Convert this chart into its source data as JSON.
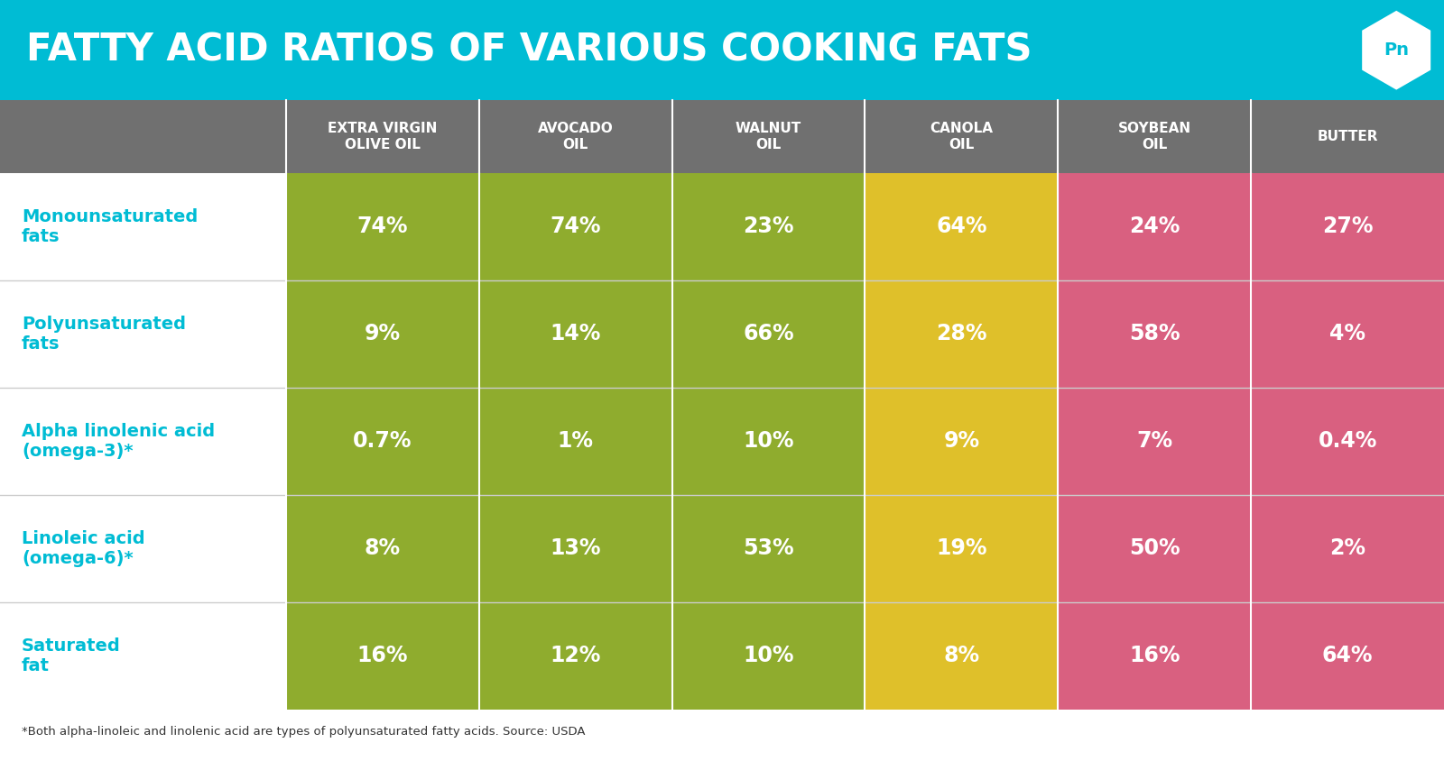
{
  "title": "FATTY ACID RATIOS OF VARIOUS COOKING FATS",
  "title_bg": "#00bcd4",
  "title_color": "#ffffff",
  "header_bg": "#707070",
  "header_color": "#ffffff",
  "row_label_color": "#00bcd4",
  "row_bg": "#ffffff",
  "footer_text": "*Both alpha-linoleic and linolenic acid are types of polyunsaturated fatty acids. Source: USDA",
  "columns": [
    "EXTRA VIRGIN\nOLIVE OIL",
    "AVOCADO\nOIL",
    "WALNUT\nOIL",
    "CANOLA\nOIL",
    "SOYBEAN\nOIL",
    "BUTTER"
  ],
  "rows": [
    "Monounsaturated\nfats",
    "Polyunsaturated\nfats",
    "Alpha linolenic acid\n(omega-3)*",
    "Linoleic acid\n(omega-6)*",
    "Saturated\nfat"
  ],
  "col_colors": [
    "#8fac2e",
    "#8fac2e",
    "#8fac2e",
    "#dfc02a",
    "#d96080",
    "#d96080"
  ],
  "data": [
    [
      "74%",
      "74%",
      "23%",
      "64%",
      "24%",
      "27%"
    ],
    [
      "9%",
      "14%",
      "66%",
      "28%",
      "58%",
      "4%"
    ],
    [
      "0.7%",
      "1%",
      "10%",
      "9%",
      "7%",
      "0.4%"
    ],
    [
      "8%",
      "13%",
      "53%",
      "19%",
      "50%",
      "2%"
    ],
    [
      "16%",
      "12%",
      "10%",
      "8%",
      "16%",
      "64%"
    ]
  ],
  "grid_line_color": "#cccccc",
  "cell_text_color": "#ffffff",
  "bottom_border_color": "#00bcd4",
  "logo_text": "Pn",
  "logo_text_color": "#00bcd4",
  "title_fontsize": 30,
  "header_fontsize": 11,
  "cell_fontsize": 17,
  "row_label_fontsize": 14
}
